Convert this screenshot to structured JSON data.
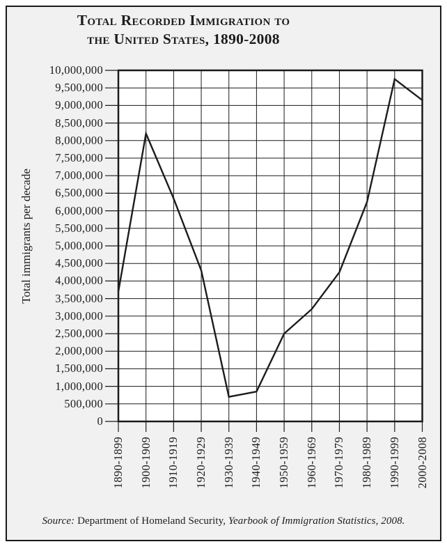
{
  "title": {
    "line1": "Total Recorded Immigration to",
    "line2": "the United States, 1890-2008"
  },
  "source": {
    "prefix": "Source:",
    "text": "Department of Homeland Security,",
    "citation": "Yearbook of Immigration Statistics, 2008."
  },
  "chart_data": {
    "type": "line",
    "title": "Total Recorded Immigration to the United States, 1890-2008",
    "categories": [
      "1890-1899",
      "1900-1909",
      "1910-1919",
      "1920-1929",
      "1930-1939",
      "1940-1949",
      "1950-1959",
      "1960-1969",
      "1970-1979",
      "1980-1989",
      "1990-1999",
      "2000-2008"
    ],
    "values": [
      3700000,
      8200000,
      6350000,
      4300000,
      700000,
      850000,
      2500000,
      3200000,
      4250000,
      6250000,
      9750000,
      9150000
    ],
    "xlabel": "",
    "ylabel": "Total immigrants per decade",
    "ylim": [
      0,
      10000000
    ],
    "ytick_step": 500000,
    "grid": "both",
    "legend": "none",
    "line_color": "#1c1c1e",
    "ink_color": "#1a1a1a",
    "background": "#f1f1f2",
    "plot_background": "#ffffff"
  }
}
